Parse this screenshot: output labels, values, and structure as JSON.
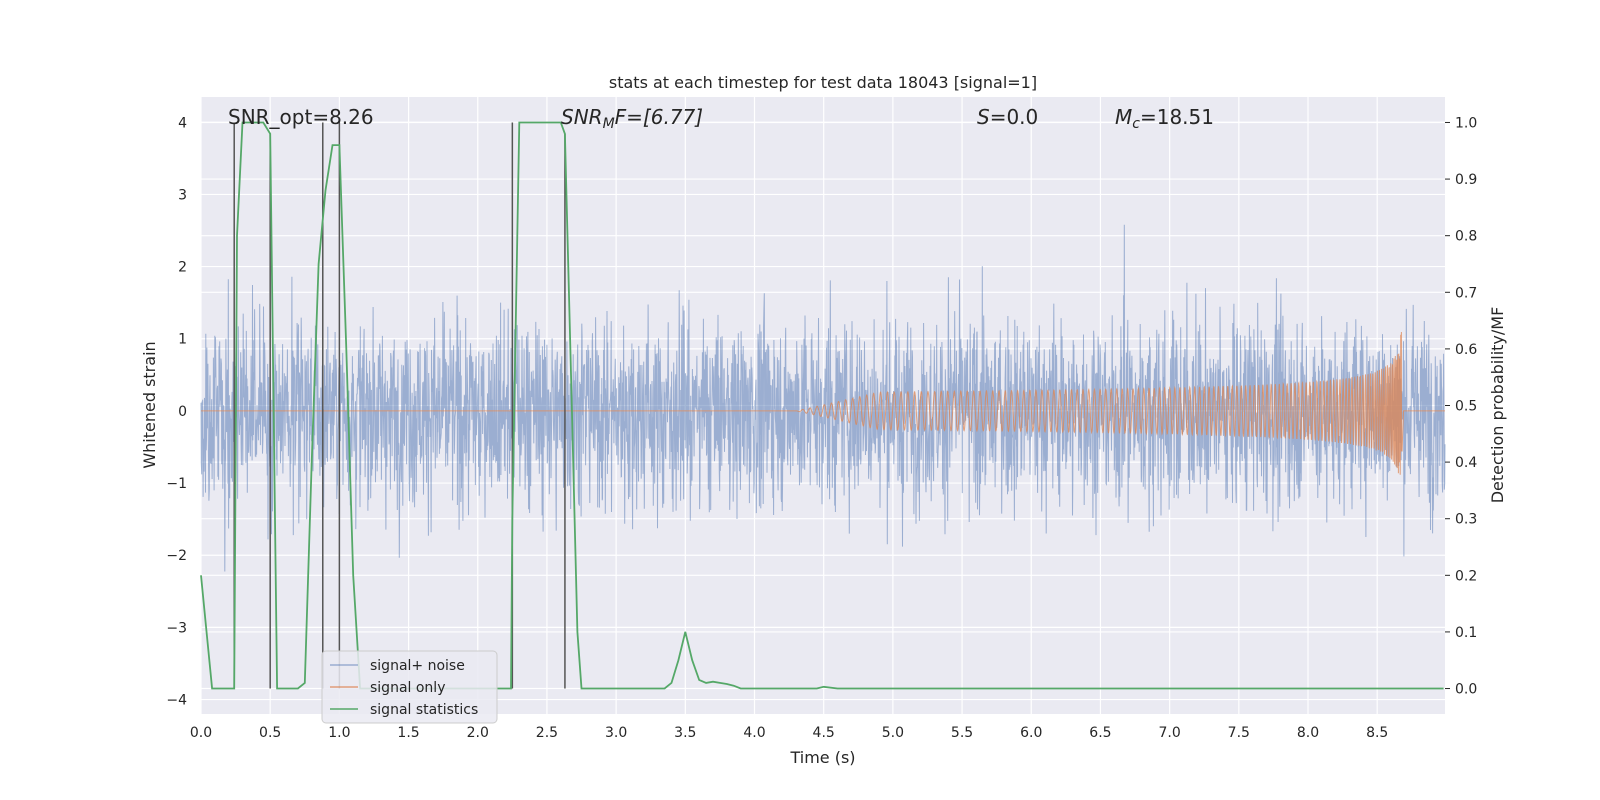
{
  "chart_data": {
    "type": "line",
    "title": "stats at each timestep for test data 18043 [signal=1]",
    "xlabel": "Time (s)",
    "ylabel_left": "Whitened strain",
    "ylabel_right": "Detection probability/MF",
    "xlim": [
      0,
      8.99
    ],
    "ylim_left": [
      -4.2,
      4.35
    ],
    "ylim_right": [
      -0.045,
      1.045
    ],
    "grid": true,
    "legend_position": "lower-left",
    "x_ticks": [
      "0.0",
      "0.5",
      "1.0",
      "1.5",
      "2.0",
      "2.5",
      "3.0",
      "3.5",
      "4.0",
      "4.5",
      "5.0",
      "5.5",
      "6.0",
      "6.5",
      "7.0",
      "7.5",
      "8.0",
      "8.5"
    ],
    "y_ticks_left": [
      "−4",
      "−3",
      "−2",
      "−1",
      "0",
      "1",
      "2",
      "3",
      "4"
    ],
    "y_ticks_right": [
      "0.0",
      "0.1",
      "0.2",
      "0.3",
      "0.4",
      "0.5",
      "0.6",
      "0.7",
      "0.8",
      "0.9",
      "1.0"
    ],
    "annotations": {
      "snr_opt": "SNR_opt=8.26",
      "snr_mf_main": "SNR",
      "snr_mf_sub": "M",
      "snr_mf_rest": "F=[6.77]",
      "s_main": "S",
      "s_rest": "=0.0",
      "mc_main": "M",
      "mc_sub": "c",
      "mc_rest": "=18.51"
    },
    "series": [
      {
        "name": "signal+ noise",
        "color": "#4c72b0",
        "axis": "left",
        "description_values": "dense whitened strain noise, approx. amplitude ±1.7 with spikes to ±4"
      },
      {
        "name": "signal only",
        "color": "#dd8452",
        "axis": "left",
        "chirp": {
          "t_start": 4.3,
          "t_merge": 8.68,
          "peak_amplitude": 1.45
        }
      },
      {
        "name": "signal statistics",
        "color": "#55a868",
        "axis": "right",
        "x": [
          0.0,
          0.08,
          0.15,
          0.24,
          0.26,
          0.3,
          0.45,
          0.5,
          0.55,
          0.6,
          0.7,
          0.75,
          0.8,
          0.85,
          0.9,
          0.95,
          1.0,
          1.05,
          1.1,
          1.15,
          1.2,
          1.25,
          1.3,
          1.35,
          1.4,
          1.45,
          1.5,
          1.6,
          1.7,
          1.8,
          1.9,
          2.0,
          2.1,
          2.2,
          2.24,
          2.25,
          2.3,
          2.6,
          2.63,
          2.68,
          2.72,
          2.75,
          2.8,
          2.9,
          3.0,
          3.1,
          3.2,
          3.3,
          3.35,
          3.4,
          3.45,
          3.5,
          3.55,
          3.6,
          3.65,
          3.7,
          3.75,
          3.8,
          3.85,
          3.9,
          4.0,
          4.1,
          4.2,
          4.3,
          4.4,
          4.45,
          4.5,
          4.6,
          4.7,
          4.8,
          5.0,
          6.0,
          7.0,
          8.0,
          8.98
        ],
        "y": [
          0.2,
          0.0,
          0.0,
          0.0,
          0.8,
          1.0,
          1.0,
          0.98,
          0.0,
          0.0,
          0.0,
          0.01,
          0.4,
          0.75,
          0.88,
          0.96,
          0.96,
          0.6,
          0.2,
          0.0,
          0.0,
          0.0,
          0.0,
          0.0,
          0.0,
          0.0,
          0.0,
          0.0,
          0.0,
          0.0,
          0.0,
          0.0,
          0.0,
          0.0,
          0.0,
          0.3,
          1.0,
          1.0,
          0.98,
          0.5,
          0.1,
          0.0,
          0.0,
          0.0,
          0.0,
          0.0,
          0.0,
          0.0,
          0.0,
          0.01,
          0.05,
          0.1,
          0.05,
          0.015,
          0.01,
          0.012,
          0.01,
          0.008,
          0.005,
          0.0,
          0.0,
          0.0,
          0.0,
          0.0,
          0.0,
          0.0,
          0.003,
          0.0,
          0.0,
          0.0,
          0.0,
          0.0,
          0.0,
          0.0,
          0.0
        ]
      }
    ],
    "vertical_markers": [
      {
        "x": 0.24,
        "y_top": 1.0
      },
      {
        "x": 0.5,
        "y_top": 0.98
      },
      {
        "x": 0.88,
        "y_top": 1.0
      },
      {
        "x": 1.0,
        "y_top": 1.0
      },
      {
        "x": 2.25,
        "y_top": 1.0
      },
      {
        "x": 2.63,
        "y_top": 0.98
      }
    ]
  }
}
